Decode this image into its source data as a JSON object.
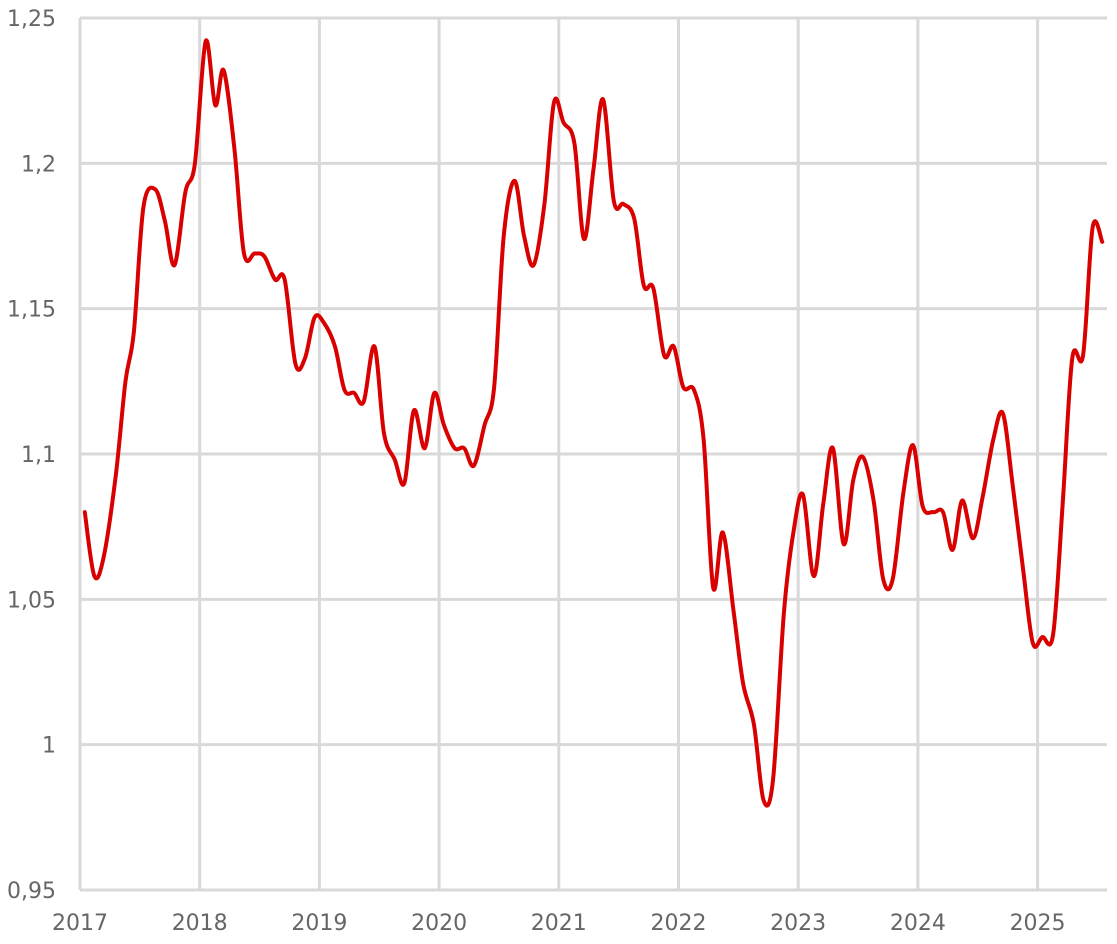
{
  "chart_data": {
    "type": "line",
    "title": "",
    "xlabel": "",
    "ylabel": "",
    "x_ticks": [
      "2017",
      "2018",
      "2019",
      "2020",
      "2021",
      "2022",
      "2023",
      "2024",
      "2025"
    ],
    "y_ticks": [
      "1,25",
      "1,2",
      "1,15",
      "1,1",
      "1,05",
      "1",
      "0,95"
    ],
    "ylim": [
      0.95,
      1.25
    ],
    "xlim": [
      2017,
      2025.58
    ],
    "grid": true,
    "legend": "none",
    "series": [
      {
        "color": "#d90000",
        "points": [
          [
            2017.04,
            1.08
          ],
          [
            2017.12,
            1.058
          ],
          [
            2017.2,
            1.065
          ],
          [
            2017.3,
            1.093
          ],
          [
            2017.38,
            1.125
          ],
          [
            2017.45,
            1.142
          ],
          [
            2017.53,
            1.185
          ],
          [
            2017.63,
            1.191
          ],
          [
            2017.71,
            1.18
          ],
          [
            2017.79,
            1.165
          ],
          [
            2017.88,
            1.19
          ],
          [
            2017.96,
            1.2
          ],
          [
            2018.05,
            1.242
          ],
          [
            2018.13,
            1.22
          ],
          [
            2018.2,
            1.232
          ],
          [
            2018.29,
            1.205
          ],
          [
            2018.37,
            1.169
          ],
          [
            2018.46,
            1.169
          ],
          [
            2018.54,
            1.168
          ],
          [
            2018.63,
            1.16
          ],
          [
            2018.71,
            1.16
          ],
          [
            2018.8,
            1.131
          ],
          [
            2018.88,
            1.133
          ],
          [
            2018.96,
            1.147
          ],
          [
            2019.04,
            1.145
          ],
          [
            2019.13,
            1.137
          ],
          [
            2019.21,
            1.122
          ],
          [
            2019.29,
            1.121
          ],
          [
            2019.37,
            1.118
          ],
          [
            2019.46,
            1.137
          ],
          [
            2019.54,
            1.107
          ],
          [
            2019.63,
            1.098
          ],
          [
            2019.71,
            1.09
          ],
          [
            2019.79,
            1.115
          ],
          [
            2019.88,
            1.102
          ],
          [
            2019.96,
            1.121
          ],
          [
            2020.04,
            1.11
          ],
          [
            2020.13,
            1.102
          ],
          [
            2020.21,
            1.102
          ],
          [
            2020.29,
            1.096
          ],
          [
            2020.38,
            1.11
          ],
          [
            2020.46,
            1.123
          ],
          [
            2020.54,
            1.175
          ],
          [
            2020.63,
            1.194
          ],
          [
            2020.71,
            1.175
          ],
          [
            2020.79,
            1.165
          ],
          [
            2020.88,
            1.186
          ],
          [
            2020.96,
            1.221
          ],
          [
            2021.04,
            1.214
          ],
          [
            2021.13,
            1.207
          ],
          [
            2021.21,
            1.174
          ],
          [
            2021.29,
            1.198
          ],
          [
            2021.37,
            1.222
          ],
          [
            2021.46,
            1.187
          ],
          [
            2021.54,
            1.186
          ],
          [
            2021.63,
            1.181
          ],
          [
            2021.71,
            1.158
          ],
          [
            2021.79,
            1.157
          ],
          [
            2021.88,
            1.134
          ],
          [
            2021.96,
            1.137
          ],
          [
            2022.04,
            1.123
          ],
          [
            2022.13,
            1.122
          ],
          [
            2022.21,
            1.105
          ],
          [
            2022.29,
            1.054
          ],
          [
            2022.37,
            1.073
          ],
          [
            2022.46,
            1.046
          ],
          [
            2022.54,
            1.021
          ],
          [
            2022.63,
            1.007
          ],
          [
            2022.71,
            0.981
          ],
          [
            2022.79,
            0.988
          ],
          [
            2022.88,
            1.045
          ],
          [
            2022.96,
            1.073
          ],
          [
            2023.04,
            1.086
          ],
          [
            2023.13,
            1.058
          ],
          [
            2023.21,
            1.083
          ],
          [
            2023.29,
            1.102
          ],
          [
            2023.38,
            1.069
          ],
          [
            2023.46,
            1.091
          ],
          [
            2023.54,
            1.099
          ],
          [
            2023.63,
            1.084
          ],
          [
            2023.71,
            1.057
          ],
          [
            2023.79,
            1.057
          ],
          [
            2023.88,
            1.087
          ],
          [
            2023.96,
            1.103
          ],
          [
            2024.04,
            1.082
          ],
          [
            2024.13,
            1.08
          ],
          [
            2024.21,
            1.08
          ],
          [
            2024.29,
            1.067
          ],
          [
            2024.37,
            1.084
          ],
          [
            2024.46,
            1.071
          ],
          [
            2024.54,
            1.085
          ],
          [
            2024.63,
            1.105
          ],
          [
            2024.71,
            1.114
          ],
          [
            2024.79,
            1.09
          ],
          [
            2024.88,
            1.06
          ],
          [
            2024.96,
            1.035
          ],
          [
            2025.04,
            1.037
          ],
          [
            2025.13,
            1.038
          ],
          [
            2025.21,
            1.083
          ],
          [
            2025.29,
            1.133
          ],
          [
            2025.38,
            1.134
          ],
          [
            2025.46,
            1.178
          ],
          [
            2025.54,
            1.173
          ]
        ]
      }
    ]
  }
}
